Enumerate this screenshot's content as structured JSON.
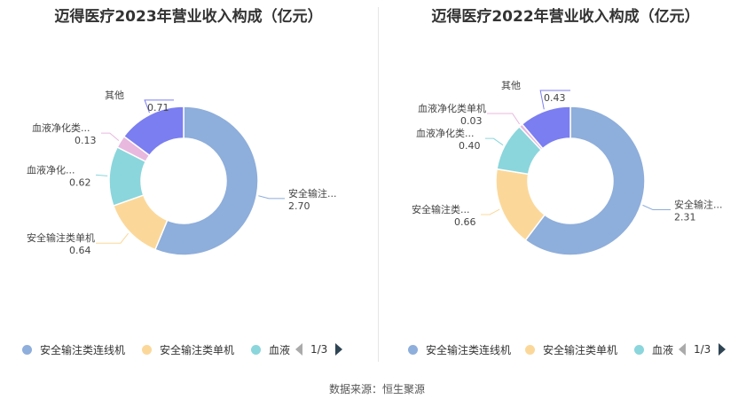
{
  "source": "数据来源：恒生聚源",
  "chart_data": [
    {
      "type": "pie",
      "title": "迈得医疗2023年营业收入构成（亿元）",
      "slices": [
        {
          "label": "安全输注...",
          "value": 2.7,
          "color": "#8eaedb"
        },
        {
          "label": "安全输注类单机",
          "value": 0.64,
          "color": "#fbd89a"
        },
        {
          "label": "血液净化...",
          "value": 0.62,
          "color": "#8ad6dc"
        },
        {
          "label": "血液净化类...",
          "value": 0.13,
          "color": "#e8b8df"
        },
        {
          "label": "其他",
          "value": 0.71,
          "color": "#7b7ef0"
        }
      ],
      "legend": {
        "items": [
          {
            "label": "安全输注类连线机",
            "color": "#8eaedb"
          },
          {
            "label": "安全输注类单机",
            "color": "#fbd89a"
          },
          {
            "label": "血液",
            "color": "#8ad6dc"
          }
        ],
        "page": "1/3",
        "placement": "bottom"
      }
    },
    {
      "type": "pie",
      "title": "迈得医疗2022年营业收入构成（亿元）",
      "slices": [
        {
          "label": "安全输注...",
          "value": 2.31,
          "color": "#8eaedb"
        },
        {
          "label": "安全输注类...",
          "value": 0.66,
          "color": "#fbd89a"
        },
        {
          "label": "血液净化类...",
          "value": 0.4,
          "color": "#8ad6dc"
        },
        {
          "label": "血液净化类单机",
          "value": 0.03,
          "color": "#e8b8df"
        },
        {
          "label": "其他",
          "value": 0.43,
          "color": "#7b7ef0"
        }
      ],
      "legend": {
        "items": [
          {
            "label": "安全输注类连线机",
            "color": "#8eaedb"
          },
          {
            "label": "安全输注类单机",
            "color": "#fbd89a"
          },
          {
            "label": "血液",
            "color": "#8ad6dc"
          }
        ],
        "page": "1/3",
        "placement": "bottom"
      }
    }
  ]
}
